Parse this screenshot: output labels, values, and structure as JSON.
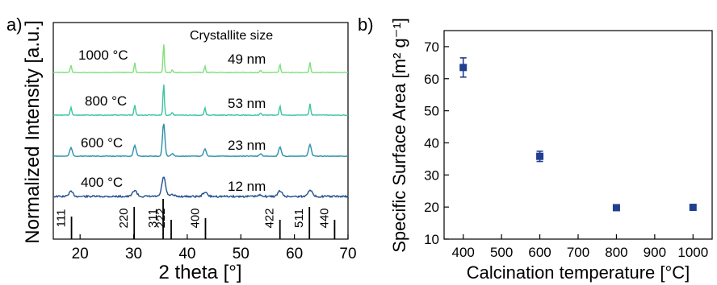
{
  "chart_data": [
    {
      "panel_label": "a)",
      "type": "line",
      "xlabel": "2 theta [°]",
      "ylabel": "Normalized Intensity [a.u.]",
      "xlim": [
        15,
        70
      ],
      "x_ticks": [
        20,
        30,
        40,
        50,
        60,
        70
      ],
      "header": "Crystallite size",
      "series": [
        {
          "temperature": "400 °C",
          "crystallite": "12 nm",
          "color": "#1f4e8c"
        },
        {
          "temperature": "600 °C",
          "crystallite": "23 nm",
          "color": "#2a8fa8"
        },
        {
          "temperature": "800 °C",
          "crystallite": "53 nm",
          "color": "#3cc4a0"
        },
        {
          "temperature": "1000 °C",
          "crystallite": "49 nm",
          "color": "#7ee07a"
        }
      ],
      "peaks": [
        18.3,
        30.2,
        35.6,
        37.2,
        43.3,
        53.7,
        57.3,
        62.9
      ],
      "reference_lines": [
        {
          "hkl": "111",
          "x": 18.3,
          "intensity": 0.45
        },
        {
          "hkl": "220",
          "x": 30.2,
          "intensity": 0.75
        },
        {
          "hkl": "311",
          "x": 35.6,
          "intensity": 1.0
        },
        {
          "hkl": "222",
          "x": 37.2,
          "intensity": 0.35
        },
        {
          "hkl": "400",
          "x": 43.3,
          "intensity": 0.4
        },
        {
          "hkl": "422",
          "x": 53.7,
          "intensity": 0.35
        },
        {
          "hkl": "511",
          "x": 57.3,
          "intensity": 0.75
        },
        {
          "hkl": "440",
          "x": 62.9,
          "intensity": 0.35
        }
      ]
    },
    {
      "panel_label": "b)",
      "type": "scatter",
      "xlabel": "Calcination temperature [°C]",
      "ylabel": "Specific Surface Area [m² g⁻¹]",
      "xlim": [
        350,
        1050
      ],
      "ylim": [
        10,
        75
      ],
      "x_ticks": [
        400,
        500,
        600,
        700,
        800,
        900,
        1000
      ],
      "y_ticks": [
        10,
        20,
        30,
        40,
        50,
        60,
        70
      ],
      "marker_color": "#1f3f8f",
      "points": [
        {
          "x": 400,
          "y": 63.5,
          "err": 3
        },
        {
          "x": 600,
          "y": 35.8,
          "err": 1.6
        },
        {
          "x": 800,
          "y": 19.8,
          "err": 0.8
        },
        {
          "x": 1000,
          "y": 19.9,
          "err": 0.8
        }
      ]
    }
  ]
}
